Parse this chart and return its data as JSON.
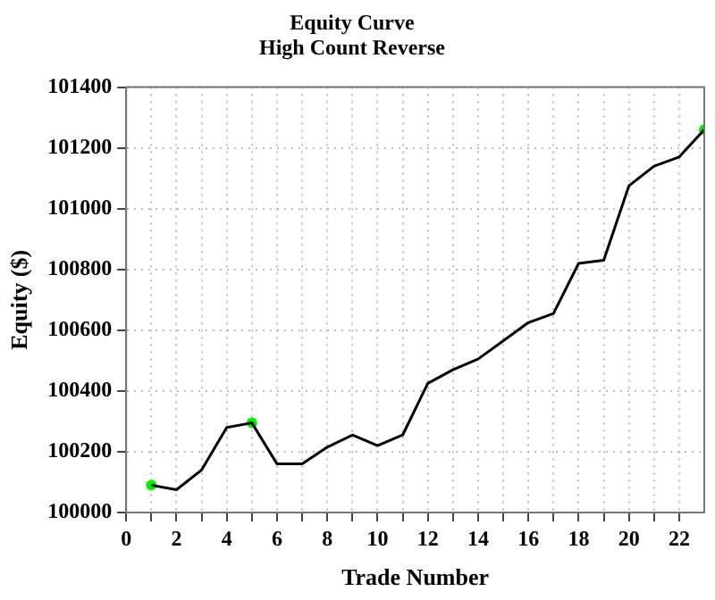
{
  "chart_data": {
    "type": "line",
    "title": "Equity Curve",
    "subtitle": "High Count Reverse",
    "xlabel": "Trade Number",
    "ylabel": "Equity ($)",
    "x": [
      1,
      2,
      3,
      4,
      5,
      6,
      7,
      8,
      9,
      10,
      11,
      12,
      13,
      14,
      15,
      16,
      17,
      18,
      19,
      20,
      21,
      22,
      23
    ],
    "series": [
      {
        "color": "#000000",
        "marker": "none",
        "values": [
          100090,
          100075,
          100140,
          100280,
          100295,
          100160,
          100160,
          100215,
          100255,
          100220,
          100255,
          100425,
          100470,
          100505,
          100565,
          100625,
          100655,
          100820,
          100830,
          101075,
          101140,
          101170,
          101260
        ]
      },
      {
        "type": "scatter",
        "color": "#00ee00",
        "marker": "circle",
        "x": [
          1,
          5,
          23
        ],
        "values": [
          100090,
          100295,
          101260
        ]
      }
    ],
    "xlim": [
      0,
      23
    ],
    "ylim": [
      100000,
      101400
    ],
    "xticks": [
      0,
      {
        "value": 1,
        "label": null
      },
      2,
      {
        "value": 3,
        "label": null
      },
      4,
      {
        "value": 5,
        "label": null
      },
      6,
      {
        "value": 7,
        "label": null
      },
      8,
      {
        "value": 9,
        "label": null
      },
      10,
      {
        "value": 11,
        "label": null
      },
      12,
      {
        "value": 13,
        "label": null
      },
      14,
      {
        "value": 15,
        "label": null
      },
      16,
      {
        "value": 17,
        "label": null
      },
      18,
      {
        "value": 19,
        "label": null
      },
      20,
      {
        "value": 21,
        "label": null
      },
      22
    ],
    "yticks": [
      100000,
      100200,
      100400,
      100600,
      100800,
      101000,
      101200,
      101400
    ],
    "grid": true,
    "legend": false
  }
}
